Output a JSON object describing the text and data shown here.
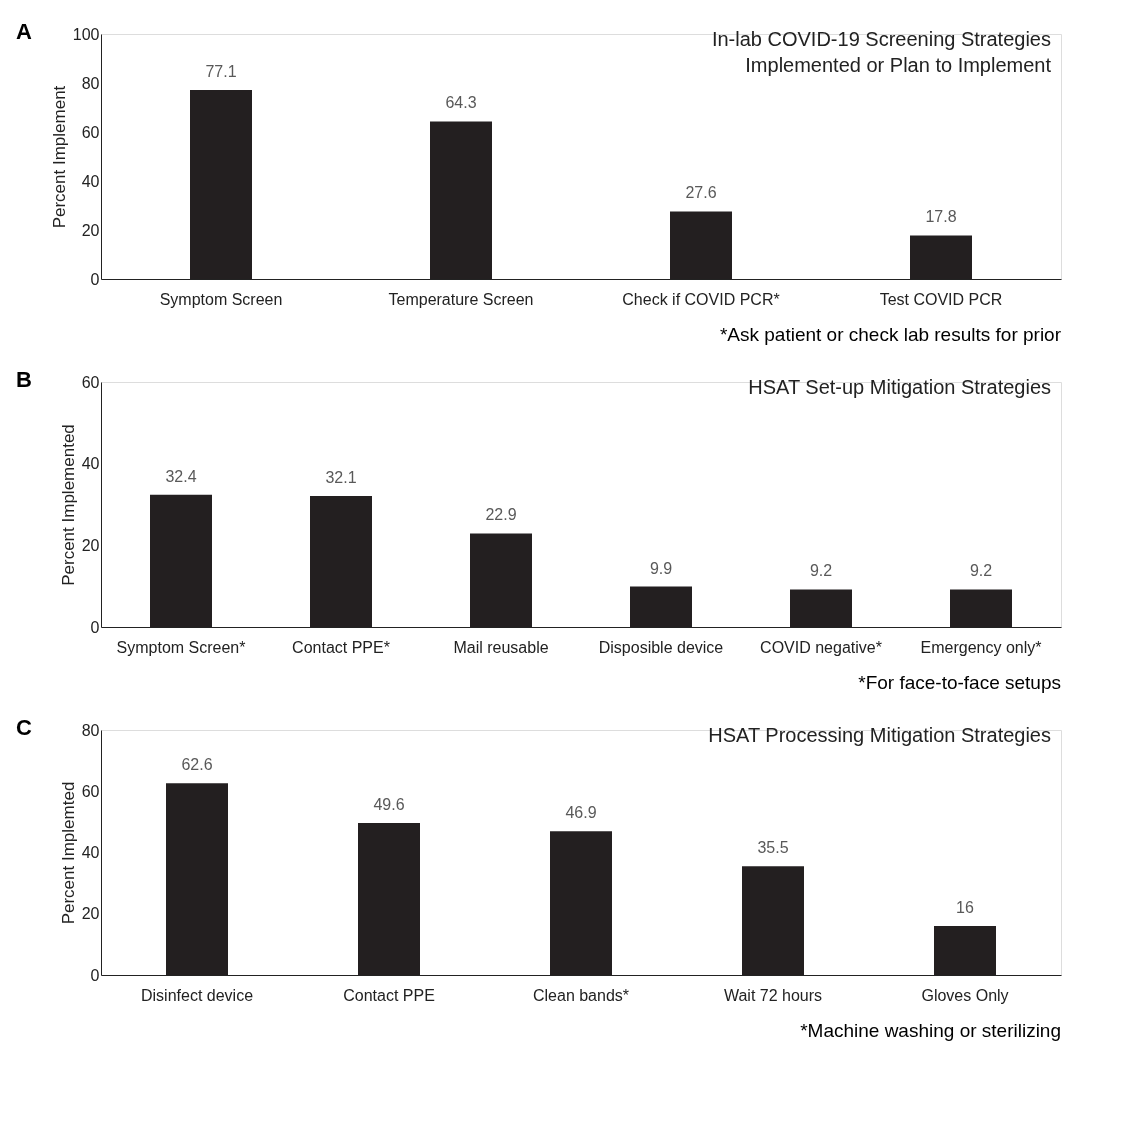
{
  "chart_data": [
    {
      "type": "bar",
      "title": "In-lab COVID-19 Screening Strategies\nImplemented or Plan to Implement",
      "ylabel": "Percent Implement",
      "categories": [
        "Symptom Screen",
        "Temperature Screen",
        "Check if COVID PCR*",
        "Test COVID PCR"
      ],
      "values": [
        77.1,
        64.3,
        27.6,
        17.8
      ],
      "color": "#231f20",
      "ylim": [
        0,
        100
      ],
      "yticks": [
        0,
        20,
        40,
        60,
        80,
        100
      ],
      "data_labels": true,
      "grid": false,
      "annotations": [
        "A",
        "*Ask patient or check lab results for prior"
      ]
    },
    {
      "type": "bar",
      "title": "HSAT Set-up Mitigation Strategies",
      "ylabel": "Percent Implemented",
      "categories": [
        "Symptom Screen*",
        "Contact PPE*",
        "Mail reusable",
        "Disposible device",
        "COVID negative*",
        "Emergency only*"
      ],
      "values": [
        32.4,
        32.1,
        22.9,
        9.9,
        9.2,
        9.2
      ],
      "color": "#231f20",
      "ylim": [
        0,
        60
      ],
      "yticks": [
        0,
        20,
        40,
        60
      ],
      "data_labels": true,
      "grid": false,
      "annotations": [
        "B",
        "*For face-to-face setups"
      ]
    },
    {
      "type": "bar",
      "title": "HSAT Processing Mitigation Strategies",
      "ylabel": "Percent Implemted",
      "categories": [
        "Disinfect device",
        "Contact PPE",
        "Clean bands*",
        "Wait 72 hours",
        "Gloves Only"
      ],
      "values": [
        62.6,
        49.6,
        46.9,
        35.5,
        16
      ],
      "color": "#231f20",
      "ylim": [
        0,
        80
      ],
      "yticks": [
        0,
        20,
        40,
        60,
        80
      ],
      "data_labels": true,
      "grid": false,
      "annotations": [
        "C",
        "*Machine washing or sterilizing"
      ]
    }
  ]
}
